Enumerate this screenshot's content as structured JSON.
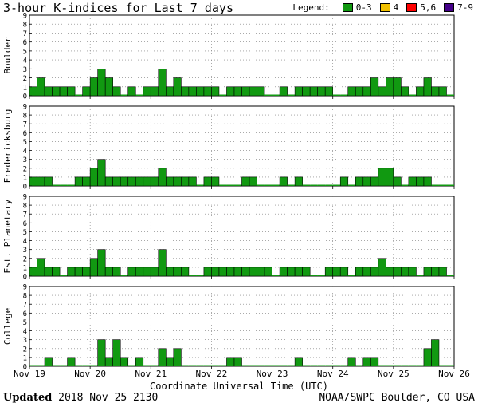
{
  "title": "3-hour K-indices for Last 7 days",
  "legend": {
    "label": "Legend:",
    "items": [
      {
        "label": "0-3",
        "color": "#119911"
      },
      {
        "label": "4",
        "color": "#f0c000"
      },
      {
        "label": "5,6",
        "color": "#ff0000"
      },
      {
        "label": "7-9",
        "color": "#440088"
      }
    ]
  },
  "footer": {
    "updated_label": "Updated",
    "updated_value": "2018 Nov 25 2130",
    "source": "NOAA/SWPC Boulder, CO USA"
  },
  "chart_data": {
    "type": "bar",
    "xlabel": "Coordinate Universal Time (UTC)",
    "x_ticks": [
      "Nov 19",
      "Nov 20",
      "Nov 21",
      "Nov 22",
      "Nov 23",
      "Nov 24",
      "Nov 25",
      "Nov 26"
    ],
    "bars_per_day": 8,
    "ylim": [
      0,
      9
    ],
    "y_ticks": [
      0,
      1,
      2,
      3,
      4,
      5,
      6,
      7,
      8,
      9
    ],
    "series": [
      {
        "name": "Boulder",
        "values": [
          1,
          2,
          1,
          1,
          1,
          1,
          0,
          1,
          2,
          3,
          2,
          1,
          0,
          1,
          0,
          1,
          1,
          3,
          1,
          2,
          1,
          1,
          1,
          1,
          1,
          0,
          1,
          1,
          1,
          1,
          1,
          0,
          0,
          1,
          0,
          1,
          1,
          1,
          1,
          1,
          0,
          0,
          1,
          1,
          1,
          2,
          1,
          2,
          2,
          1,
          0,
          1,
          2,
          1,
          1,
          0
        ]
      },
      {
        "name": "Fredericksburg",
        "values": [
          1,
          1,
          1,
          0,
          0,
          0,
          1,
          1,
          2,
          3,
          1,
          1,
          1,
          1,
          1,
          1,
          1,
          2,
          1,
          1,
          1,
          1,
          0,
          1,
          1,
          0,
          0,
          0,
          1,
          1,
          0,
          0,
          0,
          1,
          0,
          1,
          0,
          0,
          0,
          0,
          0,
          1,
          0,
          1,
          1,
          1,
          2,
          2,
          1,
          0,
          1,
          1,
          1,
          0,
          0,
          0
        ]
      },
      {
        "name": "Est. Planetary",
        "values": [
          1,
          2,
          1,
          1,
          0,
          1,
          1,
          1,
          2,
          3,
          1,
          1,
          0,
          1,
          1,
          1,
          1,
          3,
          1,
          1,
          1,
          0,
          0,
          1,
          1,
          1,
          1,
          1,
          1,
          1,
          1,
          1,
          0,
          1,
          1,
          1,
          1,
          0,
          0,
          1,
          1,
          1,
          0,
          1,
          1,
          1,
          2,
          1,
          1,
          1,
          1,
          0,
          1,
          1,
          1,
          0
        ]
      },
      {
        "name": "College",
        "values": [
          0,
          0,
          1,
          0,
          0,
          1,
          0,
          0,
          0,
          3,
          1,
          3,
          1,
          0,
          1,
          0,
          0,
          2,
          1,
          2,
          0,
          0,
          0,
          0,
          0,
          0,
          1,
          1,
          0,
          0,
          0,
          0,
          0,
          0,
          0,
          1,
          0,
          0,
          0,
          0,
          0,
          0,
          1,
          0,
          1,
          1,
          0,
          0,
          0,
          0,
          0,
          0,
          2,
          3,
          0,
          0
        ]
      }
    ]
  }
}
